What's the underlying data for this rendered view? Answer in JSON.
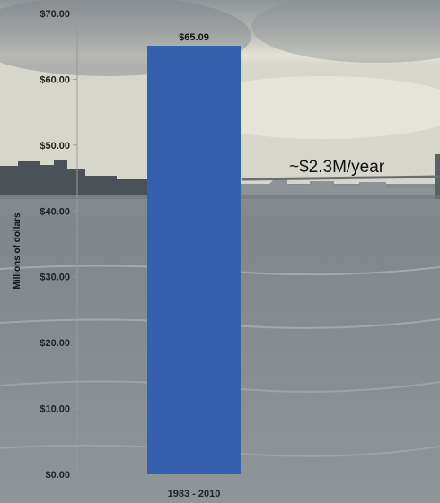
{
  "chart_data": {
    "type": "bar",
    "categories": [
      "1983 - 2010"
    ],
    "values": [
      65.09
    ],
    "data_labels": [
      "$65.09"
    ],
    "ylabel": "Millions of dollars",
    "xlabel": "",
    "ylim": [
      0,
      70
    ],
    "y_ticks": [
      0,
      10,
      20,
      30,
      40,
      50,
      60,
      70
    ],
    "y_tick_labels": [
      "$0.00",
      "$10.00",
      "$20.00",
      "$30.00",
      "$40.00",
      "$50.00",
      "$60.00",
      "$70.00"
    ],
    "grid": false,
    "annotation": "~$2.3M/year",
    "colors": {
      "bar": "#3560AE",
      "axis": "#9a9a9a"
    }
  }
}
